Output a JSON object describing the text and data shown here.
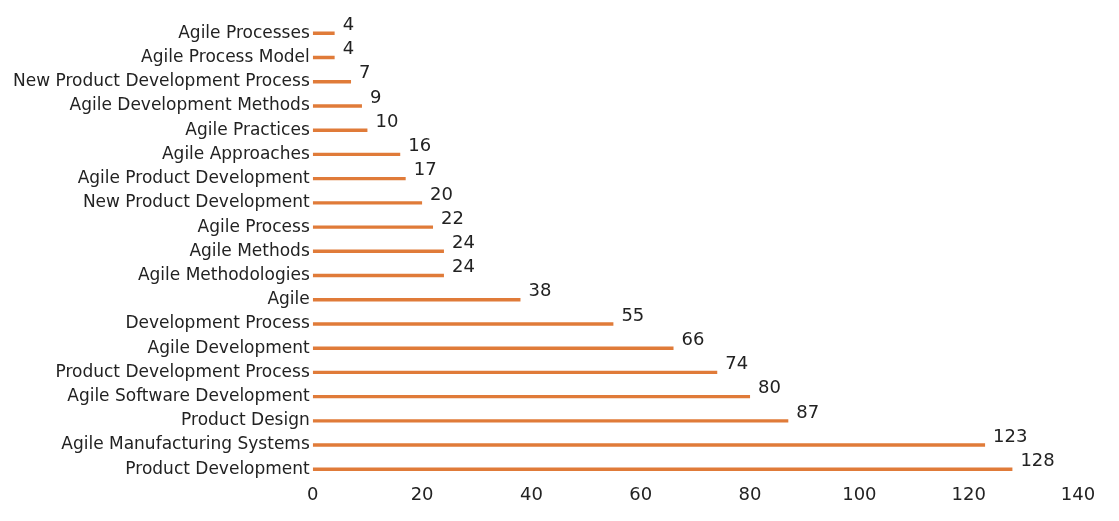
{
  "chart_data": {
    "type": "bar",
    "orientation": "horizontal",
    "categories": [
      "Agile Processes",
      "Agile Process Model",
      "New Product Development Process",
      "Agile Development Methods",
      "Agile Practices",
      "Agile Approaches",
      "Agile Product Development",
      "New Product Development",
      "Agile Process",
      "Agile Methods",
      "Agile Methodologies",
      "Agile",
      "Development Process",
      "Agile Development",
      "Product Development Process",
      "Agile Software Development",
      "Product Design",
      "Agile Manufacturing Systems",
      "Product Development"
    ],
    "values": [
      4,
      4,
      7,
      9,
      10,
      16,
      17,
      20,
      22,
      24,
      24,
      38,
      55,
      66,
      74,
      80,
      87,
      123,
      128
    ],
    "color": "#e07b39",
    "xlim": [
      0,
      140
    ],
    "xticks": [
      0,
      20,
      40,
      60,
      80,
      100,
      120,
      140
    ],
    "grid": false,
    "data_labels": true
  }
}
